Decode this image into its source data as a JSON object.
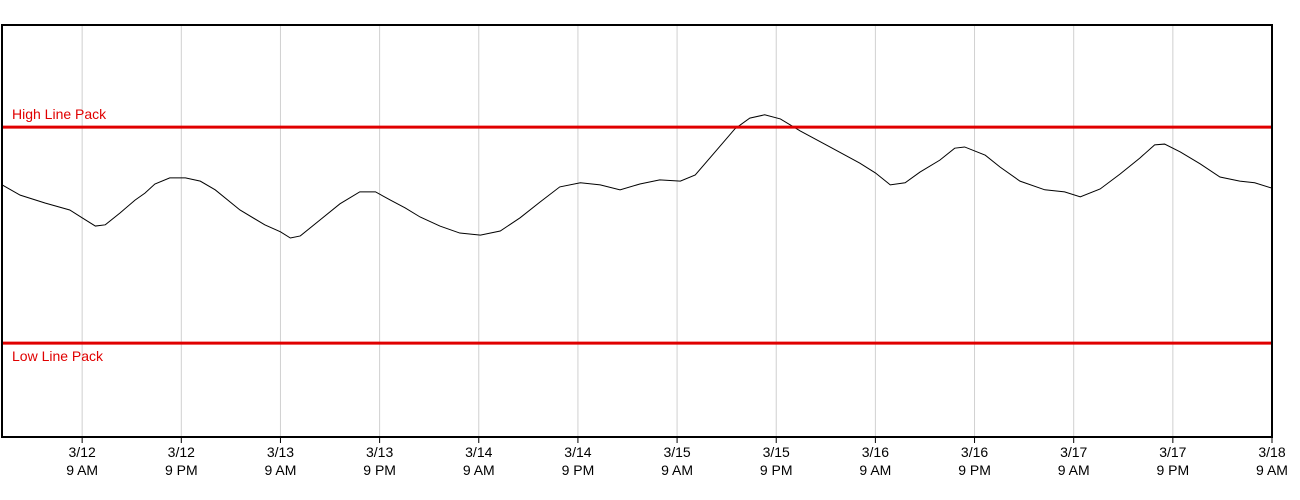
{
  "chart_data": {
    "type": "line",
    "x": [
      -9.7,
      -7.5,
      -4.5,
      -1.5,
      0,
      1.6,
      2.8,
      4.6,
      6.4,
      7.6,
      8.8,
      10.6,
      12.5,
      14.3,
      16.1,
      19.1,
      22.1,
      24.0,
      25.2,
      26.4,
      28.8,
      31.2,
      33.6,
      35.5,
      37.3,
      39.1,
      40.9,
      43.3,
      45.7,
      48.2,
      50.6,
      53.0,
      55.4,
      57.8,
      60.3,
      62.7,
      65.1,
      67.5,
      69.9,
      72.4,
      74.2,
      76.6,
      79.0,
      80.8,
      82.6,
      84.5,
      86.9,
      90.5,
      94.1,
      96.0,
      97.8,
      99.6,
      101.4,
      103.8,
      105.6,
      106.8,
      109.3,
      111.1,
      113.5,
      116.5,
      118.9,
      120.8,
      123.2,
      125.6,
      128.0,
      129.8,
      131.0,
      132.9,
      135.3,
      137.7,
      140.1,
      141.9,
      144
    ],
    "series": [
      {
        "color": "#000000",
        "values": [
          61.2,
          58.7,
          56.8,
          55.1,
          53.2,
          51.2,
          51.5,
          54.4,
          57.5,
          59.2,
          61.4,
          62.9,
          62.9,
          62.1,
          60.0,
          55.1,
          51.5,
          49.8,
          48.3,
          48.8,
          52.7,
          56.6,
          59.5,
          59.5,
          57.5,
          55.6,
          53.4,
          51.2,
          49.5,
          49.0,
          50.0,
          53.2,
          57.0,
          60.7,
          61.7,
          61.2,
          60.0,
          61.4,
          62.4,
          62.1,
          63.6,
          69.2,
          74.8,
          77.4,
          78.2,
          77.2,
          74.3,
          70.4,
          66.5,
          64.1,
          61.2,
          61.7,
          64.3,
          67.2,
          70.1,
          70.4,
          68.4,
          65.5,
          62.1,
          60.0,
          59.5,
          58.3,
          60.2,
          63.8,
          67.7,
          70.9,
          71.1,
          69.2,
          66.3,
          63.1,
          62.1,
          61.7,
          60.4
        ]
      }
    ],
    "reference_lines": [
      {
        "label": "High Line Pack",
        "value": 75.2,
        "color": "#e00000"
      },
      {
        "label": "Low Line Pack",
        "value": 22.8,
        "color": "#e00000"
      }
    ],
    "xlim": [
      -9.7,
      144
    ],
    "ylim": [
      0,
      100
    ],
    "xticks": [
      {
        "value": 0,
        "label": "3/12 9 AM"
      },
      {
        "value": 12,
        "label": "3/12 9 PM"
      },
      {
        "value": 24,
        "label": "3/13 9 AM"
      },
      {
        "value": 36,
        "label": "3/13 9 PM"
      },
      {
        "value": 48,
        "label": "3/14 9 AM"
      },
      {
        "value": 60,
        "label": "3/14 9 PM"
      },
      {
        "value": 72,
        "label": "3/15 9 AM"
      },
      {
        "value": 84,
        "label": "3/15 9 PM"
      },
      {
        "value": 96,
        "label": "3/16 9 AM"
      },
      {
        "value": 108,
        "label": "3/16 9 PM"
      },
      {
        "value": 120,
        "label": "3/17 9 AM"
      },
      {
        "value": 132,
        "label": "3/17 9 PM"
      },
      {
        "value": 144,
        "label": "3/18 9 AM"
      }
    ],
    "grid": true
  }
}
